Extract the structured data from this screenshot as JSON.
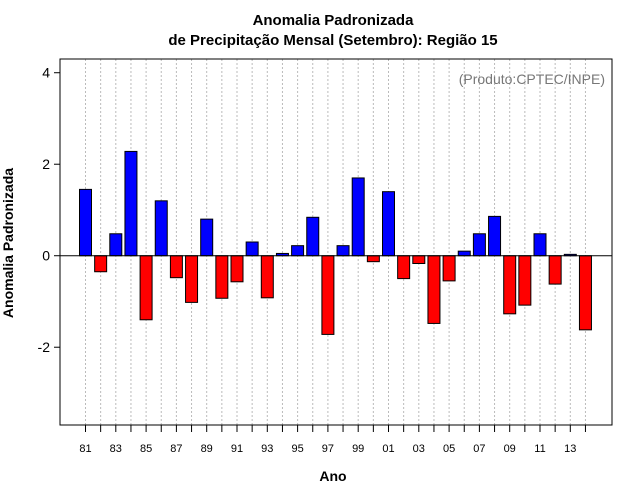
{
  "chart_data": {
    "type": "bar",
    "title_line1": "Anomalia Padronizada",
    "title_line2": "de Precipitação Mensal (Setembro): Região 15",
    "xlabel": "Ano",
    "ylabel": "Anomalia Padronizada",
    "source": "(Produto:CPTEC/INPE)",
    "ylim": [
      -3.7,
      4.3
    ],
    "yticks": [
      4,
      2,
      0,
      -2
    ],
    "ytick_labels": [
      "4",
      "2",
      "0",
      "-2"
    ],
    "grid": "vertical dotted",
    "colors": {
      "positive": "#0000ff",
      "negative": "#ff0000",
      "grid": "#bbbbbb"
    },
    "years": [
      "1981",
      "1982",
      "1983",
      "1984",
      "1985",
      "1986",
      "1987",
      "1988",
      "1989",
      "1990",
      "1991",
      "1992",
      "1993",
      "1994",
      "1995",
      "1996",
      "1997",
      "1998",
      "1999",
      "2000",
      "2001",
      "2002",
      "2003",
      "2004",
      "2005",
      "2006",
      "2007",
      "2008",
      "2009",
      "2010",
      "2011",
      "2012",
      "2013",
      "2014"
    ],
    "xtick_labels": [
      "81",
      "83",
      "85",
      "87",
      "89",
      "91",
      "93",
      "95",
      "97",
      "99",
      "01",
      "03",
      "05",
      "07",
      "09",
      "11",
      "13"
    ],
    "values": [
      1.45,
      -0.35,
      0.48,
      2.28,
      -1.4,
      1.2,
      -0.48,
      -1.02,
      0.8,
      -0.93,
      -0.57,
      0.3,
      -0.92,
      0.05,
      0.22,
      0.84,
      -1.72,
      0.22,
      1.7,
      -0.13,
      1.4,
      -0.5,
      -0.17,
      -1.48,
      -0.55,
      0.1,
      0.48,
      0.86,
      -1.27,
      -1.08,
      0.48,
      -0.62,
      0.03,
      -1.62
    ]
  }
}
